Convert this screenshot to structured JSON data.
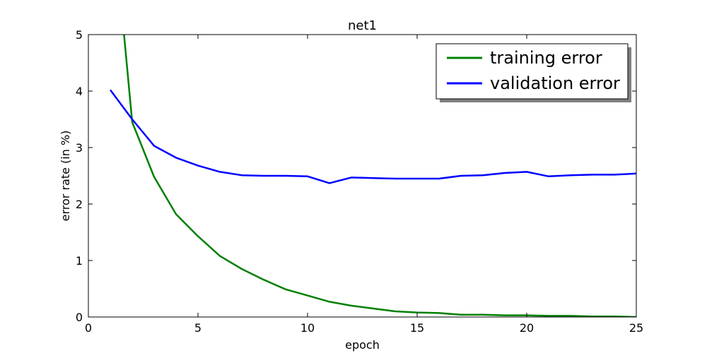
{
  "chart_data": {
    "type": "line",
    "title": "net1",
    "xlabel": "epoch",
    "ylabel": "error rate (in %)",
    "xlim": [
      0,
      25
    ],
    "ylim": [
      0,
      5
    ],
    "xticks": [
      0,
      5,
      10,
      15,
      20,
      25
    ],
    "yticks": [
      0,
      1,
      2,
      3,
      4,
      5
    ],
    "grid": false,
    "legend_position": "top-right",
    "series": [
      {
        "name": "training error",
        "color": "#008000",
        "x": [
          1,
          2,
          3,
          4,
          5,
          6,
          7,
          8,
          9,
          10,
          11,
          12,
          13,
          14,
          15,
          16,
          17,
          18,
          19,
          20,
          21,
          22,
          23,
          24,
          25
        ],
        "y": [
          7.6,
          3.45,
          2.48,
          1.82,
          1.43,
          1.08,
          0.85,
          0.66,
          0.49,
          0.38,
          0.27,
          0.2,
          0.15,
          0.1,
          0.08,
          0.07,
          0.04,
          0.04,
          0.03,
          0.03,
          0.02,
          0.02,
          0.01,
          0.01,
          0.0
        ]
      },
      {
        "name": "validation error",
        "color": "#0000ff",
        "x": [
          1,
          2,
          3,
          4,
          5,
          6,
          7,
          8,
          9,
          10,
          11,
          12,
          13,
          14,
          15,
          16,
          17,
          18,
          19,
          20,
          21,
          22,
          23,
          24,
          25
        ],
        "y": [
          4.02,
          3.5,
          3.03,
          2.82,
          2.68,
          2.57,
          2.51,
          2.5,
          2.5,
          2.49,
          2.37,
          2.47,
          2.46,
          2.45,
          2.45,
          2.45,
          2.5,
          2.51,
          2.55,
          2.57,
          2.49,
          2.51,
          2.52,
          2.52,
          2.54
        ]
      }
    ]
  }
}
